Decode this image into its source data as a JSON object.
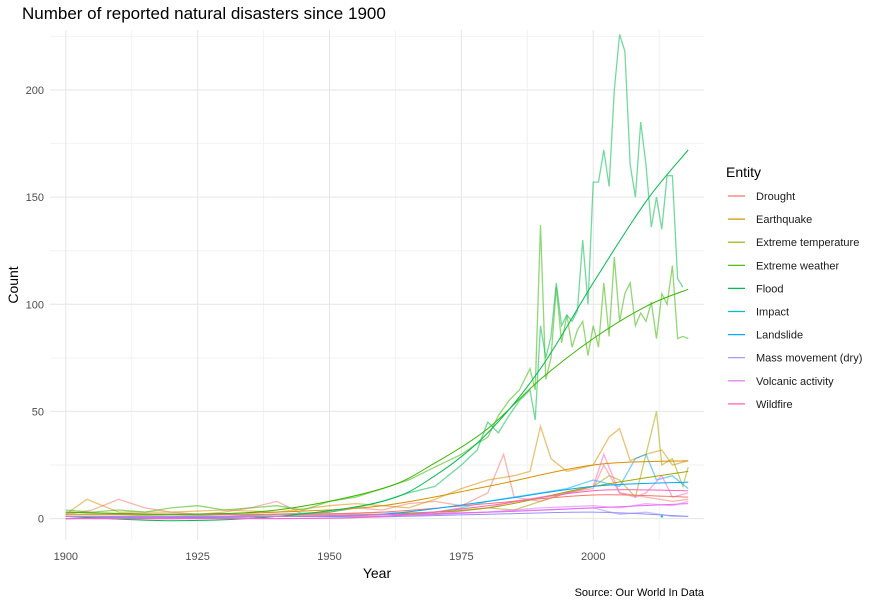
{
  "chart_data": {
    "type": "line",
    "title": "Number of reported natural disasters since 1900",
    "caption": "Source: Our World In Data",
    "xlabel": "Year",
    "ylabel": "Count",
    "xlim": [
      1897,
      2021
    ],
    "ylim": [
      -10,
      228
    ],
    "x_ticks": [
      1900,
      1925,
      1950,
      1975,
      2000
    ],
    "y_ticks": [
      0,
      50,
      100,
      150,
      200
    ],
    "grid": true,
    "legend_title": "Entity",
    "legend_position": "right",
    "series": [
      {
        "name": "Drought",
        "color": "#F8766D",
        "points": [
          [
            1900,
            2
          ],
          [
            1905,
            4
          ],
          [
            1910,
            9
          ],
          [
            1915,
            5
          ],
          [
            1920,
            3
          ],
          [
            1925,
            2
          ],
          [
            1930,
            3
          ],
          [
            1935,
            5
          ],
          [
            1940,
            8
          ],
          [
            1945,
            2
          ],
          [
            1950,
            3
          ],
          [
            1955,
            5
          ],
          [
            1960,
            4
          ],
          [
            1965,
            7
          ],
          [
            1970,
            8
          ],
          [
            1975,
            6
          ],
          [
            1980,
            12
          ],
          [
            1983,
            30
          ],
          [
            1985,
            10
          ],
          [
            1990,
            8
          ],
          [
            1995,
            12
          ],
          [
            2000,
            14
          ],
          [
            2002,
            25
          ],
          [
            2005,
            12
          ],
          [
            2010,
            10
          ],
          [
            2015,
            8
          ],
          [
            2018,
            9
          ]
        ],
        "trend": [
          [
            1900,
            3
          ],
          [
            1920,
            2
          ],
          [
            1940,
            2
          ],
          [
            1960,
            3
          ],
          [
            1980,
            7
          ],
          [
            2000,
            11
          ],
          [
            2018,
            10
          ]
        ]
      },
      {
        "name": "Earthquake",
        "color": "#D89000",
        "points": [
          [
            1900,
            2
          ],
          [
            1904,
            9
          ],
          [
            1910,
            3
          ],
          [
            1920,
            3
          ],
          [
            1930,
            4
          ],
          [
            1940,
            3
          ],
          [
            1950,
            6
          ],
          [
            1955,
            7
          ],
          [
            1960,
            6
          ],
          [
            1965,
            5
          ],
          [
            1970,
            9
          ],
          [
            1975,
            14
          ],
          [
            1980,
            18
          ],
          [
            1985,
            20
          ],
          [
            1988,
            22
          ],
          [
            1990,
            43
          ],
          [
            1992,
            28
          ],
          [
            1995,
            22
          ],
          [
            2000,
            25
          ],
          [
            2003,
            38
          ],
          [
            2005,
            42
          ],
          [
            2007,
            27
          ],
          [
            2010,
            30
          ],
          [
            2013,
            32
          ],
          [
            2015,
            25
          ],
          [
            2018,
            27
          ]
        ],
        "trend": [
          [
            1900,
            2
          ],
          [
            1920,
            2
          ],
          [
            1940,
            3
          ],
          [
            1960,
            6
          ],
          [
            1980,
            15
          ],
          [
            2000,
            25
          ],
          [
            2018,
            27
          ]
        ]
      },
      {
        "name": "Extreme temperature",
        "color": "#A3A500",
        "points": [
          [
            1900,
            1
          ],
          [
            1910,
            1
          ],
          [
            1920,
            2
          ],
          [
            1930,
            1
          ],
          [
            1940,
            1
          ],
          [
            1950,
            2
          ],
          [
            1960,
            2
          ],
          [
            1970,
            3
          ],
          [
            1980,
            5
          ],
          [
            1985,
            4
          ],
          [
            1990,
            8
          ],
          [
            1995,
            12
          ],
          [
            2000,
            15
          ],
          [
            2003,
            20
          ],
          [
            2005,
            18
          ],
          [
            2008,
            10
          ],
          [
            2010,
            30
          ],
          [
            2012,
            50
          ],
          [
            2013,
            25
          ],
          [
            2015,
            28
          ],
          [
            2017,
            15
          ],
          [
            2018,
            24
          ]
        ],
        "trend": [
          [
            1900,
            0
          ],
          [
            1940,
            1
          ],
          [
            1960,
            2
          ],
          [
            1980,
            5
          ],
          [
            2000,
            15
          ],
          [
            2018,
            22
          ]
        ]
      },
      {
        "name": "Extreme weather",
        "color": "#39B600",
        "points": [
          [
            1900,
            4
          ],
          [
            1905,
            3
          ],
          [
            1910,
            4
          ],
          [
            1915,
            3
          ],
          [
            1920,
            5
          ],
          [
            1925,
            6
          ],
          [
            1930,
            4
          ],
          [
            1935,
            5
          ],
          [
            1940,
            6
          ],
          [
            1945,
            4
          ],
          [
            1950,
            8
          ],
          [
            1955,
            10
          ],
          [
            1960,
            14
          ],
          [
            1965,
            18
          ],
          [
            1970,
            24
          ],
          [
            1975,
            30
          ],
          [
            1978,
            35
          ],
          [
            1980,
            38
          ],
          [
            1982,
            48
          ],
          [
            1984,
            55
          ],
          [
            1986,
            60
          ],
          [
            1988,
            70
          ],
          [
            1989,
            60
          ],
          [
            1990,
            137
          ],
          [
            1991,
            65
          ],
          [
            1992,
            75
          ],
          [
            1993,
            108
          ],
          [
            1994,
            82
          ],
          [
            1995,
            95
          ],
          [
            1996,
            80
          ],
          [
            1997,
            88
          ],
          [
            1998,
            92
          ],
          [
            1999,
            76
          ],
          [
            2000,
            90
          ],
          [
            2001,
            80
          ],
          [
            2002,
            110
          ],
          [
            2003,
            85
          ],
          [
            2004,
            122
          ],
          [
            2005,
            92
          ],
          [
            2006,
            105
          ],
          [
            2007,
            110
          ],
          [
            2008,
            90
          ],
          [
            2009,
            96
          ],
          [
            2010,
            92
          ],
          [
            2011,
            101
          ],
          [
            2012,
            84
          ],
          [
            2013,
            105
          ],
          [
            2014,
            100
          ],
          [
            2015,
            118
          ],
          [
            2016,
            84
          ],
          [
            2017,
            85
          ],
          [
            2018,
            84
          ]
        ],
        "trend": [
          [
            1900,
            3
          ],
          [
            1920,
            2
          ],
          [
            1940,
            4
          ],
          [
            1960,
            14
          ],
          [
            1970,
            26
          ],
          [
            1980,
            42
          ],
          [
            1990,
            65
          ],
          [
            2000,
            84
          ],
          [
            2010,
            99
          ],
          [
            2018,
            107
          ]
        ]
      },
      {
        "name": "Flood",
        "color": "#00BB4E",
        "points": [
          [
            1900,
            1
          ],
          [
            1910,
            1
          ],
          [
            1920,
            1
          ],
          [
            1930,
            1
          ],
          [
            1940,
            2
          ],
          [
            1950,
            3
          ],
          [
            1955,
            5
          ],
          [
            1960,
            8
          ],
          [
            1965,
            12
          ],
          [
            1970,
            15
          ],
          [
            1975,
            25
          ],
          [
            1978,
            32
          ],
          [
            1980,
            45
          ],
          [
            1982,
            40
          ],
          [
            1984,
            48
          ],
          [
            1986,
            55
          ],
          [
            1988,
            60
          ],
          [
            1989,
            46
          ],
          [
            1990,
            90
          ],
          [
            1991,
            75
          ],
          [
            1992,
            85
          ],
          [
            1993,
            110
          ],
          [
            1994,
            90
          ],
          [
            1995,
            95
          ],
          [
            1996,
            92
          ],
          [
            1997,
            97
          ],
          [
            1998,
            130
          ],
          [
            1999,
            100
          ],
          [
            2000,
            157
          ],
          [
            2001,
            157
          ],
          [
            2002,
            172
          ],
          [
            2003,
            155
          ],
          [
            2004,
            200
          ],
          [
            2005,
            226
          ],
          [
            2006,
            218
          ],
          [
            2007,
            165
          ],
          [
            2008,
            150
          ],
          [
            2009,
            185
          ],
          [
            2010,
            165
          ],
          [
            2011,
            136
          ],
          [
            2012,
            150
          ],
          [
            2013,
            135
          ],
          [
            2014,
            160
          ],
          [
            2015,
            160
          ],
          [
            2016,
            112
          ],
          [
            2017,
            108
          ]
        ],
        "trend": [
          [
            1900,
            1
          ],
          [
            1920,
            -1
          ],
          [
            1940,
            1
          ],
          [
            1960,
            8
          ],
          [
            1970,
            20
          ],
          [
            1980,
            40
          ],
          [
            1990,
            70
          ],
          [
            2000,
            110
          ],
          [
            2010,
            148
          ],
          [
            2018,
            172
          ]
        ]
      },
      {
        "name": "Impact",
        "color": "#00BFC4",
        "points": [
          [
            2013,
            1
          ]
        ],
        "trend": []
      },
      {
        "name": "Landslide",
        "color": "#00A9FF",
        "points": [
          [
            1900,
            0
          ],
          [
            1920,
            1
          ],
          [
            1940,
            1
          ],
          [
            1950,
            1
          ],
          [
            1960,
            2
          ],
          [
            1970,
            3
          ],
          [
            1975,
            5
          ],
          [
            1980,
            8
          ],
          [
            1985,
            10
          ],
          [
            1990,
            12
          ],
          [
            1995,
            14
          ],
          [
            2000,
            18
          ],
          [
            2005,
            15
          ],
          [
            2008,
            28
          ],
          [
            2010,
            30
          ],
          [
            2012,
            18
          ],
          [
            2015,
            20
          ],
          [
            2018,
            14
          ]
        ],
        "trend": [
          [
            1900,
            0
          ],
          [
            1940,
            1
          ],
          [
            1960,
            2
          ],
          [
            1980,
            8
          ],
          [
            2000,
            15
          ],
          [
            2018,
            17
          ]
        ]
      },
      {
        "name": "Mass movement (dry)",
        "color": "#9590FF",
        "points": [
          [
            1900,
            1
          ],
          [
            1920,
            0
          ],
          [
            1940,
            1
          ],
          [
            1960,
            1
          ],
          [
            1970,
            2
          ],
          [
            1980,
            3
          ],
          [
            1990,
            4
          ],
          [
            2000,
            5
          ],
          [
            2005,
            2
          ],
          [
            2010,
            3
          ],
          [
            2015,
            1
          ],
          [
            2018,
            1
          ]
        ],
        "trend": [
          [
            1900,
            1
          ],
          [
            1940,
            0
          ],
          [
            1980,
            2
          ],
          [
            2000,
            3
          ],
          [
            2018,
            1
          ]
        ]
      },
      {
        "name": "Volcanic activity",
        "color": "#E76BF3",
        "points": [
          [
            1900,
            1
          ],
          [
            1910,
            1
          ],
          [
            1920,
            1
          ],
          [
            1930,
            1
          ],
          [
            1940,
            2
          ],
          [
            1950,
            2
          ],
          [
            1960,
            3
          ],
          [
            1970,
            2
          ],
          [
            1980,
            3
          ],
          [
            1990,
            5
          ],
          [
            2000,
            6
          ],
          [
            2005,
            5
          ],
          [
            2010,
            7
          ],
          [
            2015,
            6
          ],
          [
            2018,
            8
          ]
        ],
        "trend": [
          [
            1900,
            1
          ],
          [
            1940,
            1
          ],
          [
            1980,
            3
          ],
          [
            2000,
            5
          ],
          [
            2018,
            7
          ]
        ]
      },
      {
        "name": "Wildfire",
        "color": "#FF62BC",
        "points": [
          [
            1900,
            0
          ],
          [
            1920,
            0
          ],
          [
            1940,
            1
          ],
          [
            1960,
            1
          ],
          [
            1970,
            2
          ],
          [
            1980,
            5
          ],
          [
            1985,
            8
          ],
          [
            1990,
            10
          ],
          [
            1995,
            12
          ],
          [
            2000,
            15
          ],
          [
            2002,
            30
          ],
          [
            2005,
            12
          ],
          [
            2008,
            10
          ],
          [
            2010,
            12
          ],
          [
            2013,
            20
          ],
          [
            2015,
            10
          ],
          [
            2018,
            12
          ]
        ],
        "trend": [
          [
            1900,
            0
          ],
          [
            1940,
            0
          ],
          [
            1960,
            1
          ],
          [
            1980,
            6
          ],
          [
            2000,
            13
          ],
          [
            2018,
            13
          ]
        ]
      }
    ]
  }
}
